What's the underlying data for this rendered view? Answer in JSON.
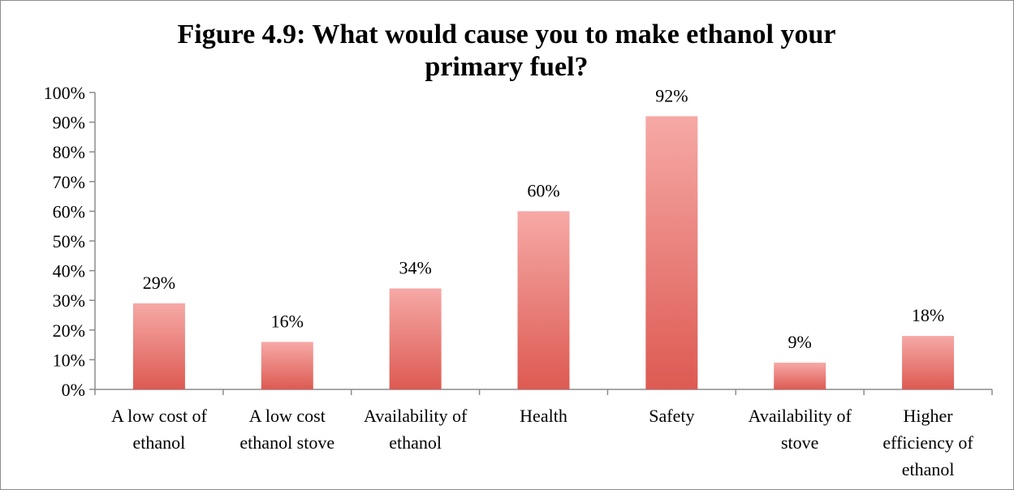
{
  "chart_data": {
    "type": "bar",
    "title_line1": "Figure 4.9: What would cause you to make ethanol your",
    "title_line2": "primary fuel?",
    "categories": [
      [
        "A low cost of",
        "ethanol"
      ],
      [
        "A low cost",
        "ethanol stove"
      ],
      [
        "Availability of",
        "ethanol"
      ],
      [
        "Health"
      ],
      [
        "Safety"
      ],
      [
        "Availability of",
        "stove"
      ],
      [
        "Higher",
        "efficiency of",
        "ethanol"
      ]
    ],
    "values": [
      29,
      16,
      34,
      60,
      92,
      9,
      18
    ],
    "data_labels": [
      "29%",
      "16%",
      "34%",
      "60%",
      "92%",
      "9%",
      "18%"
    ],
    "y_ticks": [
      "0%",
      "10%",
      "20%",
      "30%",
      "40%",
      "50%",
      "60%",
      "70%",
      "80%",
      "90%",
      "100%"
    ],
    "ylim": [
      0,
      100
    ],
    "xlabel": "",
    "ylabel": "",
    "grid": false,
    "colors": {
      "bar_top": "#f6a9a6",
      "bar_bottom": "#dd5a52",
      "axis": "#8c8c8c"
    }
  }
}
